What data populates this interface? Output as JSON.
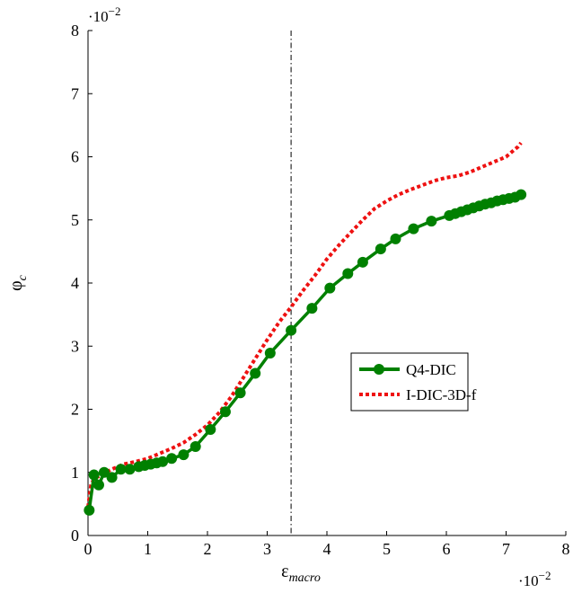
{
  "chart_data": {
    "type": "line",
    "title": "",
    "xlabel": "ε",
    "xlabel_sub": "macro",
    "ylabel": "φ",
    "ylabel_sub": "c",
    "x_scale_label": "·10",
    "x_scale_exp": "−2",
    "y_scale_label": "·10",
    "y_scale_exp": "−2",
    "xlim": [
      0,
      8
    ],
    "ylim": [
      0,
      8
    ],
    "xticks": [
      "0",
      "1",
      "2",
      "3",
      "4",
      "5",
      "6",
      "7",
      "8"
    ],
    "yticks": [
      "0",
      "1",
      "2",
      "3",
      "4",
      "5",
      "6",
      "7",
      "8"
    ],
    "grid": false,
    "legend_position": "right-middle",
    "vertical_line": {
      "x": 3.4,
      "style": "dash-dot",
      "color": "#000000"
    },
    "series": [
      {
        "name": "Q4-DIC",
        "color": "#008000",
        "style": "solid-with-markers",
        "x": [
          0.02,
          0.1,
          0.18,
          0.27,
          0.4,
          0.55,
          0.7,
          0.85,
          0.95,
          1.05,
          1.15,
          1.25,
          1.4,
          1.6,
          1.8,
          2.05,
          2.3,
          2.55,
          2.8,
          3.05,
          3.4,
          3.75,
          4.05,
          4.35,
          4.6,
          4.9,
          5.15,
          5.45,
          5.75,
          6.05,
          6.15,
          6.25,
          6.35,
          6.45,
          6.55,
          6.65,
          6.75,
          6.85,
          6.95,
          7.05,
          7.15,
          7.25
        ],
        "y": [
          0.4,
          0.96,
          0.8,
          1.0,
          0.92,
          1.05,
          1.05,
          1.09,
          1.11,
          1.13,
          1.15,
          1.17,
          1.22,
          1.28,
          1.41,
          1.68,
          1.96,
          2.26,
          2.57,
          2.89,
          3.25,
          3.6,
          3.92,
          4.15,
          4.33,
          4.54,
          4.7,
          4.86,
          4.98,
          5.07,
          5.1,
          5.13,
          5.16,
          5.19,
          5.22,
          5.25,
          5.27,
          5.3,
          5.32,
          5.34,
          5.36,
          5.4
        ]
      },
      {
        "name": "I-DIC-3D-f",
        "color": "#ee1111",
        "style": "dotted",
        "x": [
          0.0,
          0.05,
          0.1,
          0.2,
          0.4,
          0.6,
          0.8,
          1.0,
          1.2,
          1.4,
          1.6,
          1.8,
          2.0,
          2.2,
          2.4,
          2.6,
          2.8,
          3.0,
          3.2,
          3.4,
          3.6,
          3.8,
          4.0,
          4.2,
          4.4,
          4.6,
          4.8,
          5.0,
          5.2,
          5.4,
          5.6,
          5.8,
          6.0,
          6.2,
          6.4,
          6.6,
          6.8,
          7.0,
          7.1,
          7.2,
          7.25
        ],
        "y": [
          0.45,
          0.8,
          0.9,
          0.95,
          1.05,
          1.13,
          1.17,
          1.22,
          1.3,
          1.38,
          1.47,
          1.6,
          1.75,
          1.95,
          2.2,
          2.5,
          2.8,
          3.1,
          3.38,
          3.62,
          3.88,
          4.12,
          4.38,
          4.6,
          4.8,
          5.0,
          5.18,
          5.3,
          5.4,
          5.48,
          5.55,
          5.62,
          5.67,
          5.7,
          5.76,
          5.84,
          5.92,
          6.0,
          6.08,
          6.16,
          6.22
        ]
      }
    ]
  }
}
